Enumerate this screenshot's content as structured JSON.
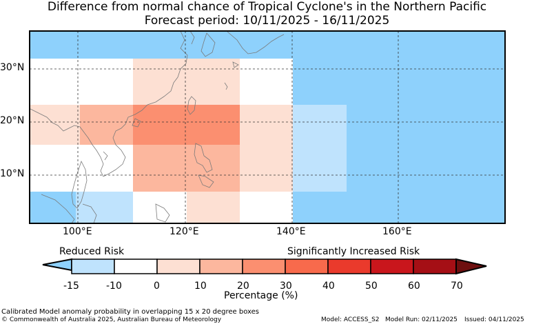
{
  "title_line1": "Difference from normal chance of Tropical Cyclone's in the Northern Pacific",
  "title_line2": "Forecast period: 10/11/2025 - 16/11/2025",
  "map": {
    "lon_labels": [
      "100°E",
      "120°E",
      "140°E",
      "160°E"
    ],
    "lat_labels": [
      "30°N",
      "20°N",
      "10°N"
    ],
    "colors": {
      "light_blue": "#8ed1fc",
      "pale_blue": "#bfe3fd",
      "white": "#ffffff",
      "pale_peach": "#fde0d3",
      "peach": "#fcb79e",
      "salmon": "#fb8f70",
      "land_outline": "#888888",
      "grid": "#333333"
    }
  },
  "legend": {
    "left_text": "Reduced Risk",
    "right_text": "Significantly Increased Risk",
    "ticks": [
      "-15",
      "-10",
      "0",
      "10",
      "20",
      "30",
      "40",
      "50",
      "60",
      "70"
    ],
    "xlabel": "Percentage (%)",
    "colors": [
      "#8ed1fc",
      "#bfe3fd",
      "#ffffff",
      "#fde0d3",
      "#fcb79e",
      "#fb8f70",
      "#f86a4c",
      "#ea3a2c",
      "#c9161c",
      "#a50f15",
      "#6e0f0f"
    ]
  },
  "footer": {
    "line1": "Calibrated Model anomaly probability in overlapping 15 x 20 degree boxes",
    "line2": "© Commonwealth of Australia 2025, Australian Bureau of Meteorology",
    "model": "Model: ACCESS_S2",
    "model_run": "Model Run: 02/11/2025",
    "issued": "Issued: 04/11/2025"
  }
}
